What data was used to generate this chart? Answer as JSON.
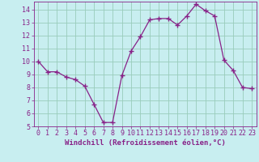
{
  "x": [
    0,
    1,
    2,
    3,
    4,
    5,
    6,
    7,
    8,
    9,
    10,
    11,
    12,
    13,
    14,
    15,
    16,
    17,
    18,
    19,
    20,
    21,
    22,
    23
  ],
  "y": [
    10.0,
    9.2,
    9.2,
    8.8,
    8.6,
    8.1,
    6.7,
    5.3,
    5.3,
    8.9,
    10.8,
    11.9,
    13.2,
    13.3,
    13.3,
    12.8,
    13.5,
    14.4,
    13.9,
    13.5,
    10.1,
    9.3,
    8.0,
    7.9
  ],
  "line_color": "#882288",
  "marker": "+",
  "marker_size": 5,
  "bg_color": "#c8eef0",
  "grid_color": "#99ccbb",
  "xlabel": "Windchill (Refroidissement éolien,°C)",
  "xlim": [
    -0.5,
    23.5
  ],
  "ylim": [
    5,
    14.6
  ],
  "yticks": [
    5,
    6,
    7,
    8,
    9,
    10,
    11,
    12,
    13,
    14
  ],
  "xticks": [
    0,
    1,
    2,
    3,
    4,
    5,
    6,
    7,
    8,
    9,
    10,
    11,
    12,
    13,
    14,
    15,
    16,
    17,
    18,
    19,
    20,
    21,
    22,
    23
  ],
  "text_color": "#882288",
  "label_fontsize": 6.5,
  "tick_fontsize": 6.0
}
